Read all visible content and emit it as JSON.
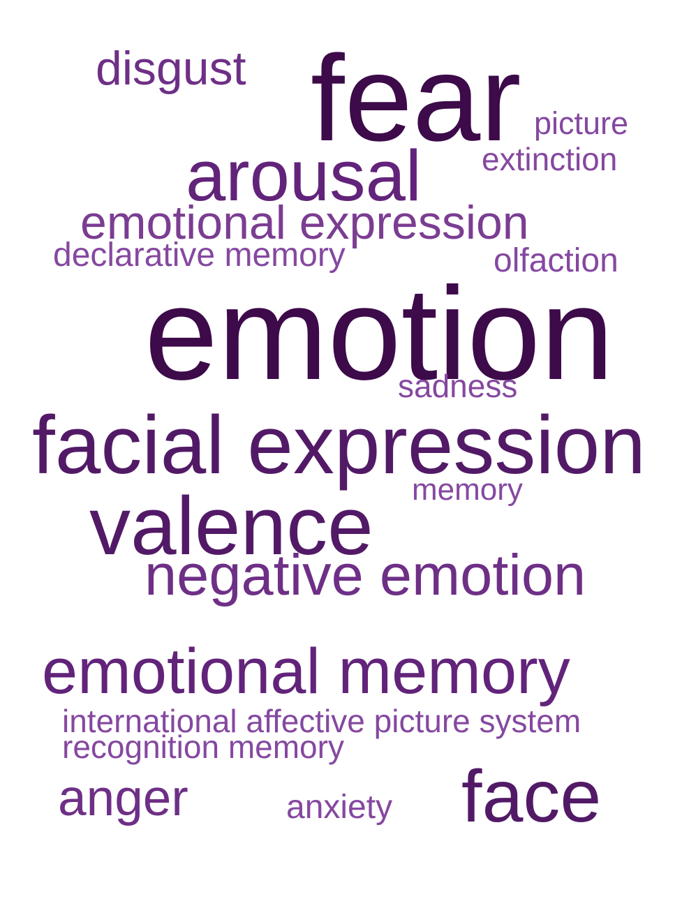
{
  "word_cloud": {
    "words": [
      {
        "key": "disgust",
        "text": "disgust",
        "weight": 0.36,
        "color": "#6e2f86"
      },
      {
        "key": "fear",
        "text": "fear",
        "weight": 0.93,
        "color": "#3d0a4a"
      },
      {
        "key": "picture",
        "text": "picture",
        "weight": 0.24,
        "color": "#8548a0"
      },
      {
        "key": "extinction",
        "text": "extinction",
        "weight": 0.24,
        "color": "#8548a0"
      },
      {
        "key": "arousal",
        "text": "arousal",
        "weight": 0.55,
        "color": "#62237a"
      },
      {
        "key": "emotional_expression",
        "text": "emotional expression",
        "weight": 0.36,
        "color": "#7b3d92"
      },
      {
        "key": "declarative_memory",
        "text": "declarative memory",
        "weight": 0.25,
        "color": "#8548a0"
      },
      {
        "key": "olfaction",
        "text": "olfaction",
        "weight": 0.25,
        "color": "#8548a0"
      },
      {
        "key": "emotion",
        "text": "emotion",
        "weight": 1.0,
        "color": "#3d0a4a"
      },
      {
        "key": "sadness",
        "text": "sadness",
        "weight": 0.24,
        "color": "#8548a0"
      },
      {
        "key": "facial_expression",
        "text": "facial expression",
        "weight": 0.62,
        "color": "#521a66"
      },
      {
        "key": "memory",
        "text": "memory",
        "weight": 0.23,
        "color": "#8548a0"
      },
      {
        "key": "valence",
        "text": "valence",
        "weight": 0.62,
        "color": "#521a66"
      },
      {
        "key": "negative_emotion",
        "text": "negative emotion",
        "weight": 0.44,
        "color": "#6e2f86"
      },
      {
        "key": "emotional_memory",
        "text": "emotional memory",
        "weight": 0.49,
        "color": "#62237a"
      },
      {
        "key": "iaps",
        "text": "international affective picture system",
        "weight": 0.24,
        "color": "#8548a0"
      },
      {
        "key": "recognition_memory",
        "text": "recognition memory",
        "weight": 0.24,
        "color": "#8548a0"
      },
      {
        "key": "anger",
        "text": "anger",
        "weight": 0.39,
        "color": "#6e2f86"
      },
      {
        "key": "anxiety",
        "text": "anxiety",
        "weight": 0.25,
        "color": "#8548a0"
      },
      {
        "key": "face",
        "text": "face",
        "weight": 0.56,
        "color": "#521a66"
      }
    ]
  }
}
